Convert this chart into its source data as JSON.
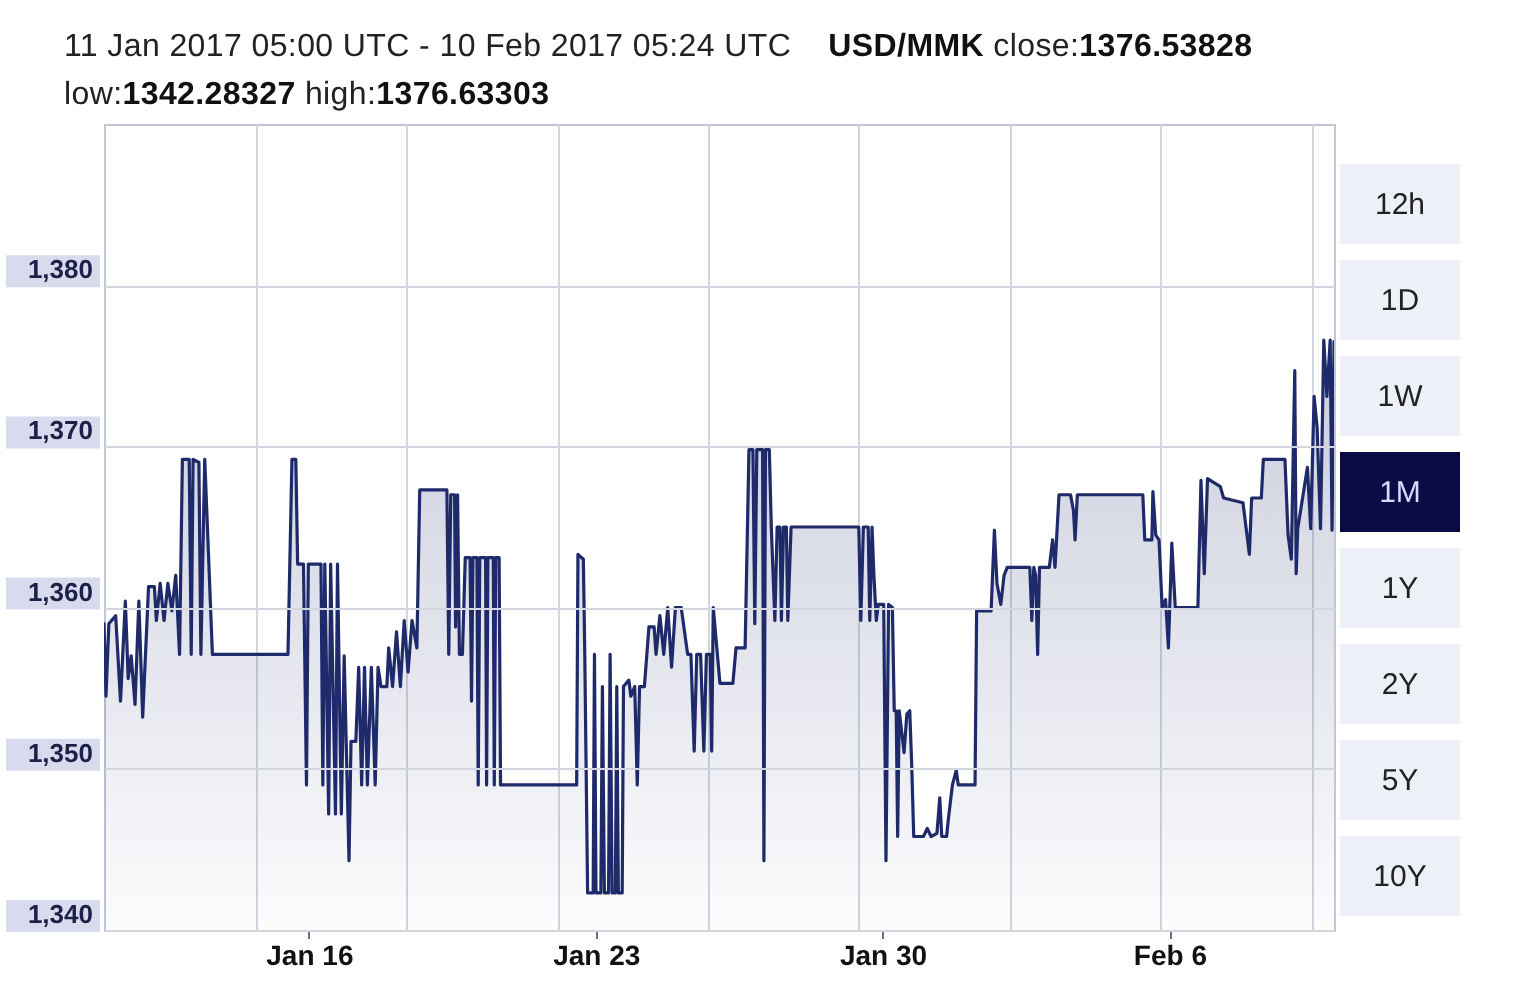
{
  "chart_data": {
    "type": "area",
    "title": "11 Jan 2017 05:00 UTC - 10 Feb 2017 05:24 UTC    USD/MMK close:1376.53828",
    "subtitle": "low:1342.28327 high:1376.63303",
    "annotations": [
      "12h",
      "1D",
      "1W",
      "1M",
      "1Y",
      "2Y",
      "5Y",
      "10Y"
    ],
    "color": "#1f2a6b",
    "x": [
      "2017-01-11T05:00",
      "2017-01-11T06:10",
      "2017-01-11T07:50",
      "2017-01-11T11:50",
      "2017-01-11T14:40",
      "2017-01-11T17:30",
      "2017-01-11T19:10",
      "2017-01-11T20:55",
      "2017-01-11T23:10",
      "2017-01-12T01:25",
      "2017-01-12T03:40",
      "2017-01-12T07:05",
      "2017-01-12T10:30",
      "2017-01-12T11:40",
      "2017-01-12T13:55",
      "2017-01-12T16:10",
      "2017-01-12T18:25",
      "2017-01-12T20:45",
      "2017-01-12T23:00",
      "2017-01-13T01:15",
      "2017-01-13T02:55",
      "2017-01-13T06:55",
      "2017-01-13T08:05",
      "2017-01-13T09:10",
      "2017-01-13T12:35",
      "2017-01-13T13:45",
      "2017-01-13T16:00",
      "2017-01-13T20:30",
      "2017-01-15T16:45",
      "2017-01-15T19:05",
      "2017-01-15T21:20",
      "2017-01-15T22:25",
      "2017-01-16T01:50",
      "2017-01-16T03:35",
      "2017-01-16T04:40",
      "2017-01-16T12:05",
      "2017-01-16T13:10",
      "2017-01-16T14:20",
      "2017-01-16T16:35",
      "2017-01-16T17:45",
      "2017-01-16T20:35",
      "2017-01-16T21:45",
      "2017-01-17T00:00",
      "2017-01-17T01:40",
      "2017-01-17T04:30",
      "2017-01-17T05:40",
      "2017-01-17T08:30",
      "2017-01-17T10:10",
      "2017-01-17T11:55",
      "2017-01-17T13:35",
      "2017-01-17T15:15",
      "2017-01-17T17:35",
      "2017-01-17T19:50",
      "2017-01-17T21:30",
      "2017-01-17T23:15",
      "2017-01-18T02:40",
      "2017-01-18T03:45",
      "2017-01-18T06:00",
      "2017-01-18T08:20",
      "2017-01-18T10:35",
      "2017-01-18T12:50",
      "2017-01-18T15:05",
      "2017-01-18T17:25",
      "2017-01-18T20:15",
      "2017-01-18T21:55",
      "2017-01-19T13:50",
      "2017-01-19T14:55",
      "2017-01-19T16:05",
      "2017-01-19T18:20",
      "2017-01-19T18:55",
      "2017-01-19T20:05",
      "2017-01-19T21:10",
      "2017-01-19T22:55",
      "2017-01-20T00:35",
      "2017-01-20T03:25",
      "2017-01-20T04:15",
      "2017-01-20T05:05",
      "2017-01-20T07:25",
      "2017-01-20T08:10",
      "2017-01-20T09:05",
      "2017-01-20T12:30",
      "2017-01-20T13:05",
      "2017-01-20T13:50",
      "2017-01-20T17:00",
      "2017-01-20T17:35",
      "2017-01-20T18:25",
      "2017-01-20T20:25",
      "2017-01-20T21:15",
      "2017-01-22T17:50",
      "2017-01-22T18:35",
      "2017-01-22T21:45",
      "2017-01-22T22:35",
      "2017-01-23T00:15",
      "2017-01-23T03:30",
      "2017-01-23T04:15",
      "2017-01-23T05:10",
      "2017-01-23T08:00",
      "2017-01-23T08:55",
      "2017-01-23T10:05",
      "2017-01-23T12:30",
      "2017-01-23T13:25",
      "2017-01-23T14:35",
      "2017-01-23T16:30",
      "2017-01-23T17:20",
      "2017-01-23T18:15",
      "2017-01-23T20:30",
      "2017-01-23T21:15",
      "2017-01-24T00:25",
      "2017-01-24T01:35",
      "2017-01-24T03:50",
      "2017-01-24T05:20",
      "2017-01-24T06:40",
      "2017-01-24T09:30",
      "2017-01-24T12:10",
      "2017-01-24T15:10",
      "2017-01-24T16:20",
      "2017-01-24T18:35",
      "2017-01-24T20:50",
      "2017-01-24T23:10",
      "2017-01-25T01:25",
      "2017-01-25T03:40",
      "2017-01-25T07:05",
      "2017-01-25T10:50",
      "2017-01-25T12:45",
      "2017-01-25T14:40",
      "2017-01-25T16:10",
      "2017-01-25T18:25",
      "2017-01-25T20:20",
      "2017-01-25T21:50",
      "2017-01-26T00:05",
      "2017-01-26T00:55",
      "2017-01-26T01:50",
      "2017-01-26T03:30",
      "2017-01-26T05:45",
      "2017-01-26T13:20",
      "2017-01-26T15:10",
      "2017-01-26T20:30",
      "2017-01-26T22:45",
      "2017-01-27T01:05",
      "2017-01-27T02:10",
      "2017-01-27T03:20",
      "2017-01-27T06:45",
      "2017-01-27T07:30",
      "2017-01-27T08:25",
      "2017-01-27T10:40",
      "2017-01-27T11:50",
      "2017-01-27T13:55",
      "2017-01-27T15:15",
      "2017-01-27T16:55",
      "2017-01-27T17:45",
      "2017-01-27T19:00",
      "2017-01-27T20:40",
      "2017-01-27T21:30",
      "2017-01-27T23:25",
      "2017-01-29T15:05",
      "2017-01-29T16:15",
      "2017-01-29T17:45",
      "2017-01-29T20:35",
      "2017-01-29T21:30",
      "2017-01-29T22:50",
      "2017-01-29T23:55",
      "2017-01-30T01:20",
      "2017-01-30T02:30",
      "2017-01-30T05:40",
      "2017-01-30T07:00",
      "2017-01-30T08:30",
      "2017-01-30T10:45",
      "2017-01-30T11:50",
      "2017-01-30T13:00",
      "2017-01-30T13:50",
      "2017-01-30T14:45",
      "2017-01-30T17:35",
      "2017-01-30T19:15",
      "2017-01-30T20:55",
      "2017-01-30T22:05",
      "2017-01-30T23:15",
      "2017-01-31T04:55",
      "2017-01-31T07:10",
      "2017-01-31T09:25",
      "2017-01-31T12:50",
      "2017-01-31T14:30",
      "2017-01-31T15:40",
      "2017-01-31T18:30",
      "2017-01-31T19:40",
      "2017-01-31T21:55",
      "2017-02-01T00:10",
      "2017-02-01T01:20",
      "2017-02-01T11:10",
      "2017-02-01T12:05",
      "2017-02-01T20:35",
      "2017-02-01T22:30",
      "2017-02-02T00:00",
      "2017-02-02T02:15",
      "2017-02-02T04:10",
      "2017-02-02T06:00",
      "2017-02-02T19:15",
      "2017-02-02T20:25",
      "2017-02-02T21:35",
      "2017-02-02T22:40",
      "2017-02-02T23:50",
      "2017-02-03T00:55",
      "2017-02-03T06:40",
      "2017-02-03T08:35",
      "2017-02-03T10:00",
      "2017-02-03T12:20",
      "2017-02-03T19:05",
      "2017-02-03T20:50",
      "2017-02-03T21:45",
      "2017-02-03T23:05",
      "2017-02-05T13:25",
      "2017-02-05T14:35",
      "2017-02-05T18:45",
      "2017-02-05T19:20",
      "2017-02-05T21:00",
      "2017-02-05T22:55",
      "2017-02-06T00:45",
      "2017-02-06T02:45",
      "2017-02-06T04:25",
      "2017-02-06T06:25",
      "2017-02-06T08:25",
      "2017-02-06T21:40",
      "2017-02-06T23:30",
      "2017-02-07T01:25",
      "2017-02-07T03:20",
      "2017-02-07T10:50",
      "2017-02-07T12:45",
      "2017-02-08T00:05",
      "2017-02-08T03:50",
      "2017-02-08T05:10",
      "2017-02-08T10:50",
      "2017-02-08T12:00",
      "2017-02-09T00:40",
      "2017-02-09T02:30",
      "2017-02-09T04:25",
      "2017-02-09T06:25",
      "2017-02-09T07:15",
      "2017-02-09T08:10",
      "2017-02-09T13:50",
      "2017-02-09T15:45",
      "2017-02-09T17:45",
      "2017-02-09T19:30",
      "2017-02-09T21:30",
      "2017-02-09T23:25",
      "2017-02-10T01:15",
      "2017-02-10T03:10",
      "2017-02-10T04:15",
      "2017-02-10T05:24"
    ],
    "values": [
      1359.0,
      1354.5,
      1359.0,
      1359.5,
      1354.2,
      1360.4,
      1355.6,
      1357.0,
      1354.0,
      1360.4,
      1353.2,
      1361.3,
      1361.3,
      1359.2,
      1361.5,
      1359.2,
      1361.5,
      1359.8,
      1362.0,
      1357.1,
      1369.2,
      1369.2,
      1357.1,
      1369.2,
      1369.0,
      1357.1,
      1369.2,
      1357.1,
      1357.1,
      1369.2,
      1369.2,
      1362.7,
      1362.7,
      1349.0,
      1362.7,
      1362.7,
      1349.0,
      1362.7,
      1347.2,
      1362.7,
      1347.2,
      1362.7,
      1347.2,
      1357.0,
      1344.3,
      1351.7,
      1351.7,
      1356.3,
      1349.0,
      1356.3,
      1349.0,
      1356.3,
      1349.0,
      1356.3,
      1355.1,
      1355.1,
      1357.5,
      1355.1,
      1358.5,
      1355.1,
      1359.2,
      1356.0,
      1359.2,
      1357.5,
      1367.3,
      1367.3,
      1357.1,
      1367.0,
      1367.0,
      1358.8,
      1367.0,
      1357.1,
      1357.1,
      1363.1,
      1363.1,
      1354.2,
      1363.1,
      1363.1,
      1349.0,
      1363.1,
      1363.1,
      1349.0,
      1363.1,
      1363.1,
      1349.0,
      1363.1,
      1363.1,
      1349.0,
      1349.0,
      1363.3,
      1363.0,
      1357.1,
      1342.3,
      1342.3,
      1357.1,
      1342.3,
      1342.3,
      1355.1,
      1342.3,
      1342.3,
      1357.1,
      1342.3,
      1342.3,
      1355.1,
      1342.3,
      1342.3,
      1355.1,
      1355.5,
      1354.5,
      1355.1,
      1349.0,
      1355.1,
      1355.1,
      1358.8,
      1358.8,
      1357.1,
      1359.5,
      1357.1,
      1360.0,
      1356.3,
      1360.0,
      1360.0,
      1357.1,
      1357.1,
      1351.1,
      1357.1,
      1357.1,
      1351.1,
      1357.1,
      1357.1,
      1351.1,
      1360.0,
      1358.0,
      1355.3,
      1355.3,
      1357.5,
      1357.5,
      1369.8,
      1369.8,
      1359.0,
      1369.8,
      1369.8,
      1344.3,
      1369.8,
      1369.8,
      1365.0,
      1359.2,
      1365.0,
      1365.0,
      1359.2,
      1365.0,
      1365.0,
      1359.2,
      1365.0,
      1365.0,
      1359.2,
      1365.0,
      1365.0,
      1359.2,
      1365.0,
      1362.0,
      1359.2,
      1360.2,
      1360.2,
      1344.3,
      1360.2,
      1360.0,
      1353.6,
      1353.6,
      1345.8,
      1353.6,
      1351.0,
      1353.4,
      1353.6,
      1350.2,
      1345.8,
      1345.8,
      1346.3,
      1345.8,
      1346.0,
      1348.2,
      1345.8,
      1345.8,
      1347.0,
      1349.0,
      1349.9,
      1349.0,
      1349.0,
      1359.8,
      1359.8,
      1364.8,
      1361.5,
      1360.2,
      1362.0,
      1362.5,
      1362.5,
      1359.2,
      1362.5,
      1362.0,
      1357.1,
      1362.5,
      1362.5,
      1364.2,
      1362.5,
      1367.0,
      1367.0,
      1366.0,
      1364.2,
      1367.0,
      1367.0,
      1364.2,
      1364.2,
      1367.2,
      1364.5,
      1364.2,
      1360.0,
      1360.5,
      1357.5,
      1364.0,
      1360.0,
      1360.0,
      1367.9,
      1362.1,
      1368.0,
      1367.5,
      1366.8,
      1366.5,
      1363.3,
      1366.8,
      1366.8,
      1369.2,
      1369.2,
      1364.5,
      1363.0,
      1374.7,
      1362.1,
      1364.9,
      1368.7,
      1364.9,
      1373.1,
      1371.2,
      1364.9,
      1376.6,
      1373.1,
      1376.6,
      1364.8,
      1376.5
    ],
    "xlim": [
      "2017-01-11T05:00",
      "2017-02-10T05:24"
    ],
    "xticks": [
      {
        "value": "2017-01-14T22:00",
        "label": null
      },
      {
        "value": "2017-01-16T05:00",
        "label": "Jan 16"
      },
      {
        "value": "2017-01-18T14:00",
        "label": null
      },
      {
        "value": "2017-01-22T07:00",
        "label": null
      },
      {
        "value": "2017-01-23T05:00",
        "label": "Jan 23"
      },
      {
        "value": "2017-01-25T23:00",
        "label": null
      },
      {
        "value": "2017-01-29T15:00",
        "label": null
      },
      {
        "value": "2017-01-30T05:00",
        "label": "Jan 30"
      },
      {
        "value": "2017-02-02T08:00",
        "label": null
      },
      {
        "value": "2017-02-06T00:00",
        "label": null
      },
      {
        "value": "2017-02-06T05:00",
        "label": "Feb 6"
      },
      {
        "value": "2017-02-09T17:00",
        "label": null
      }
    ],
    "ylim": [
      1340,
      1390
    ],
    "yticks": [
      {
        "value": 1340,
        "label": "1,340"
      },
      {
        "value": 1350,
        "label": "1,350"
      },
      {
        "value": 1360,
        "label": "1,360"
      },
      {
        "value": 1370,
        "label": "1,370"
      },
      {
        "value": 1380,
        "label": "1,380"
      }
    ],
    "grid": true
  }
}
